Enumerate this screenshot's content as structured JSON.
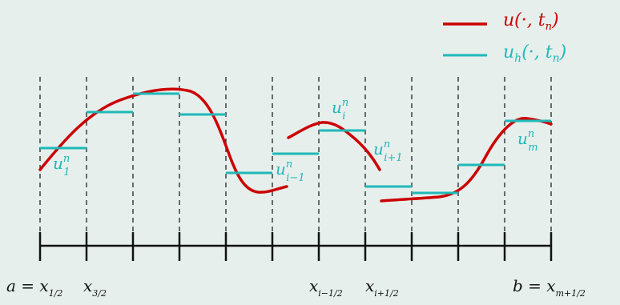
{
  "colors": {
    "background": "#e6efec",
    "exact": "#cc0000",
    "approx": "#1fb8b8",
    "axis": "#111111",
    "grid": "#111111"
  },
  "legend": {
    "exact": {
      "label": "u(·, t",
      "sub": "n",
      "tail": ")"
    },
    "approx": {
      "label": "u",
      "sub_h": "h",
      "mid": "(·, t",
      "sub": "n",
      "tail": ")"
    }
  },
  "cell_labels": {
    "u1": {
      "base": "u",
      "sup": "n",
      "sub": "1"
    },
    "uim1": {
      "base": "u",
      "sup": "n",
      "sub": "i−1"
    },
    "ui": {
      "base": "u",
      "sup": "n",
      "sub": "i"
    },
    "uip1": {
      "base": "u",
      "sup": "n",
      "sub": "i+1"
    },
    "um": {
      "base": "u",
      "sup": "n",
      "sub": "m"
    }
  },
  "axis_labels": {
    "a": {
      "left": "a = x",
      "sub": "1/2"
    },
    "x32": {
      "base": "x",
      "sub": "3/2"
    },
    "xim": {
      "base": "x",
      "sub": "i−1/2"
    },
    "xip": {
      "base": "x",
      "sub": "i+1/2"
    },
    "b": {
      "left": "b = x",
      "sub": "m+1/2"
    }
  },
  "cell_values": [
    0.47,
    0.63,
    0.71,
    0.62,
    0.34,
    0.43,
    0.56,
    0.28,
    0.25,
    0.4,
    0.59
  ],
  "exact_curve_segments": 3
}
